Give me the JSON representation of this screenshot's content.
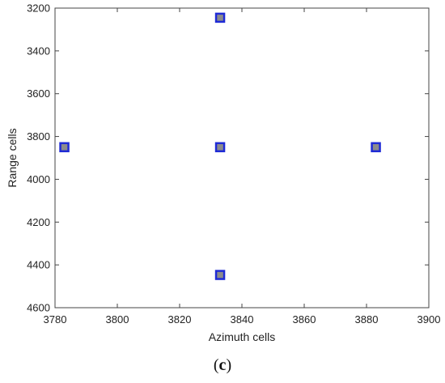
{
  "chart_data": {
    "type": "scatter",
    "xlabel": "Azimuth cells",
    "ylabel": "Range cells",
    "xlim": [
      3780,
      3900
    ],
    "ylim": [
      3200,
      4600
    ],
    "y_axis_reversed": true,
    "x_ticks": [
      "3780",
      "3800",
      "3820",
      "3840",
      "3860",
      "3880",
      "3900"
    ],
    "y_ticks": [
      "3200",
      "3400",
      "3600",
      "3800",
      "4000",
      "4200",
      "4400",
      "4600"
    ],
    "grid": false,
    "marker": {
      "shape": "square",
      "edge_color": "#1f2bd6",
      "face_color": "#8c8c8c"
    },
    "points": [
      {
        "x": 3833,
        "y": 3245
      },
      {
        "x": 3783,
        "y": 3850
      },
      {
        "x": 3833,
        "y": 3850
      },
      {
        "x": 3883,
        "y": 3850
      },
      {
        "x": 3833,
        "y": 4447
      }
    ]
  },
  "panel_label": "(c)",
  "panel_label_parts": {
    "open": "(",
    "letter": "c",
    "close": ")"
  }
}
